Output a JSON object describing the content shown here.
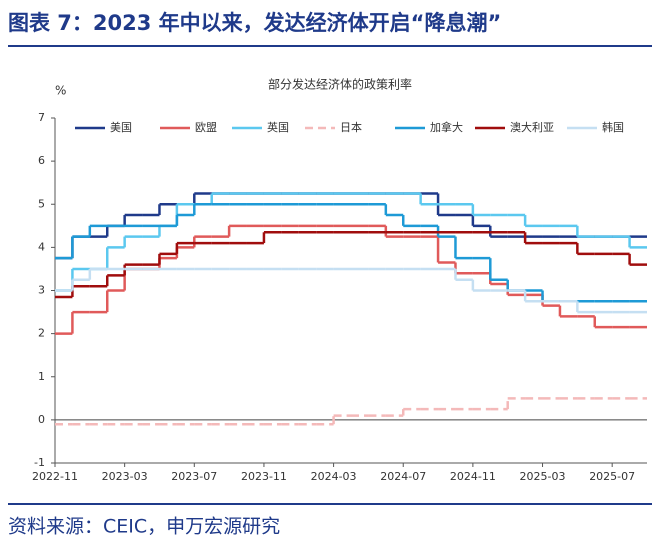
{
  "header": {
    "title": "图表 7：2023 年中以来，发达经济体开启“降息潮”"
  },
  "footer": {
    "source": "资料来源：CEIC，申万宏源研究"
  },
  "chart_data": {
    "type": "step",
    "title": "部分发达经济体的政策利率",
    "y_unit": "%",
    "x": [
      "2022-11",
      null,
      null,
      null,
      "2023-03",
      null,
      null,
      null,
      "2023-07",
      null,
      null,
      null,
      "2023-11",
      null,
      null,
      null,
      "2024-03",
      null,
      null,
      null,
      "2024-07",
      null,
      null,
      null,
      "2024-11",
      null,
      null,
      null,
      "2025-03",
      null,
      null,
      null,
      "2025-07",
      null
    ],
    "ylim": [
      -1,
      7
    ],
    "yticks": [
      -1,
      0,
      1,
      2,
      3,
      4,
      5,
      6,
      7
    ],
    "legend": "top",
    "series": [
      {
        "name": "美国",
        "color": "#1f3a8a",
        "values": [
          3.75,
          4.25,
          4.25,
          4.5,
          4.75,
          4.75,
          5.0,
          5.0,
          5.25,
          5.25,
          5.25,
          5.25,
          5.25,
          5.25,
          5.25,
          5.25,
          5.25,
          5.25,
          5.25,
          5.25,
          5.25,
          5.25,
          4.75,
          4.75,
          4.5,
          4.25,
          4.25,
          4.25,
          4.25,
          4.25,
          4.25,
          4.25,
          4.25,
          4.25
        ]
      },
      {
        "name": "欧盟",
        "color": "#e05a5a",
        "values": [
          2.0,
          2.5,
          2.5,
          3.0,
          3.5,
          3.5,
          3.75,
          4.0,
          4.25,
          4.25,
          4.5,
          4.5,
          4.5,
          4.5,
          4.5,
          4.5,
          4.5,
          4.5,
          4.5,
          4.25,
          4.25,
          4.25,
          3.65,
          3.4,
          3.4,
          3.15,
          2.9,
          2.9,
          2.65,
          2.4,
          2.4,
          2.15,
          2.15,
          2.15
        ]
      },
      {
        "name": "英国",
        "color": "#5bc8ef",
        "values": [
          3.0,
          3.5,
          3.5,
          4.0,
          4.25,
          4.25,
          4.5,
          5.0,
          5.0,
          5.25,
          5.25,
          5.25,
          5.25,
          5.25,
          5.25,
          5.25,
          5.25,
          5.25,
          5.25,
          5.25,
          5.25,
          5.0,
          5.0,
          5.0,
          4.75,
          4.75,
          4.75,
          4.5,
          4.5,
          4.5,
          4.25,
          4.25,
          4.25,
          4.0
        ]
      },
      {
        "name": "日本",
        "color": "#f4b9b9",
        "dashed": true,
        "values": [
          -0.1,
          -0.1,
          -0.1,
          -0.1,
          -0.1,
          -0.1,
          -0.1,
          -0.1,
          -0.1,
          -0.1,
          -0.1,
          -0.1,
          -0.1,
          -0.1,
          -0.1,
          -0.1,
          0.1,
          0.1,
          0.1,
          0.1,
          0.25,
          0.25,
          0.25,
          0.25,
          0.25,
          0.25,
          0.5,
          0.5,
          0.5,
          0.5,
          0.5,
          0.5,
          0.5,
          0.5
        ]
      },
      {
        "name": "加拿大",
        "color": "#1e9ad6",
        "values": [
          3.75,
          4.25,
          4.5,
          4.5,
          4.5,
          4.5,
          4.5,
          4.75,
          5.0,
          5.0,
          5.0,
          5.0,
          5.0,
          5.0,
          5.0,
          5.0,
          5.0,
          5.0,
          5.0,
          4.75,
          4.5,
          4.5,
          4.25,
          3.75,
          3.75,
          3.25,
          3.0,
          3.0,
          2.75,
          2.75,
          2.75,
          2.75,
          2.75,
          2.75
        ]
      },
      {
        "name": "澳大利亚",
        "color": "#a00d0d",
        "values": [
          2.85,
          3.1,
          3.1,
          3.35,
          3.6,
          3.6,
          3.85,
          4.1,
          4.1,
          4.1,
          4.1,
          4.1,
          4.35,
          4.35,
          4.35,
          4.35,
          4.35,
          4.35,
          4.35,
          4.35,
          4.35,
          4.35,
          4.35,
          4.35,
          4.35,
          4.35,
          4.35,
          4.1,
          4.1,
          4.1,
          3.85,
          3.85,
          3.85,
          3.6
        ]
      },
      {
        "name": "韩国",
        "color": "#c5dff2",
        "values": [
          3.0,
          3.25,
          3.5,
          3.5,
          3.5,
          3.5,
          3.5,
          3.5,
          3.5,
          3.5,
          3.5,
          3.5,
          3.5,
          3.5,
          3.5,
          3.5,
          3.5,
          3.5,
          3.5,
          3.5,
          3.5,
          3.5,
          3.5,
          3.25,
          3.0,
          3.0,
          3.0,
          2.75,
          2.75,
          2.75,
          2.5,
          2.5,
          2.5,
          2.5
        ]
      }
    ]
  }
}
